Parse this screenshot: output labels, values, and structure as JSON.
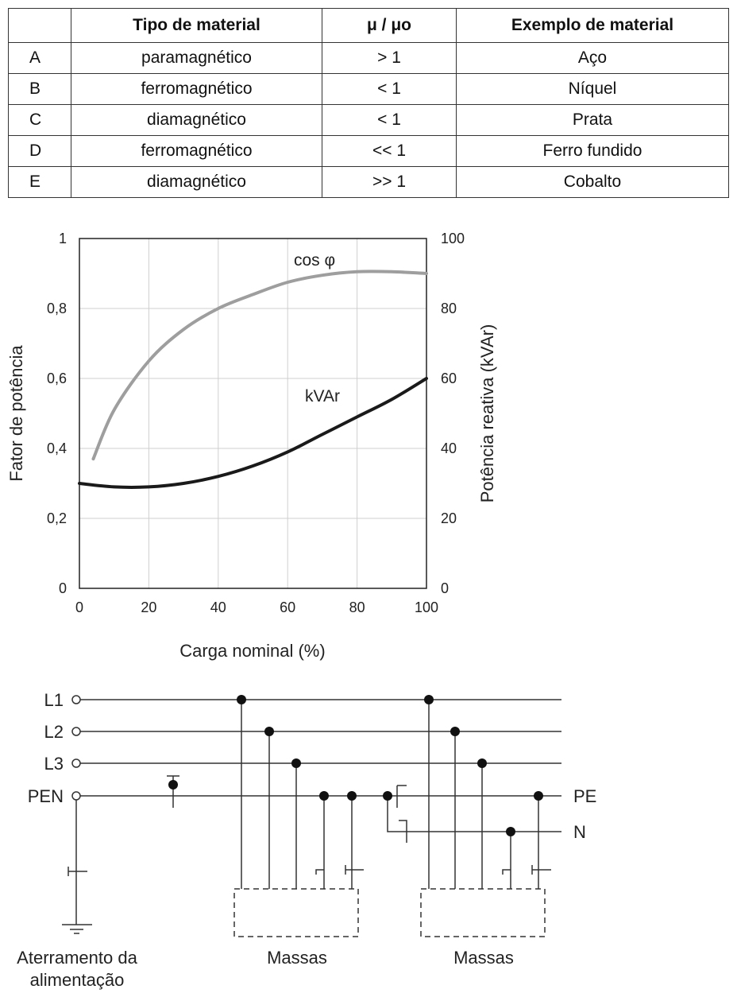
{
  "table": {
    "headers": [
      "",
      "Tipo de material",
      "μ / μo",
      "Exemplo de material"
    ],
    "rows": [
      {
        "letter": "A",
        "tipo": "paramagnético",
        "mu": "> 1",
        "exemplo": "Aço"
      },
      {
        "letter": "B",
        "tipo": "ferromagnético",
        "mu": "< 1",
        "exemplo": "Níquel"
      },
      {
        "letter": "C",
        "tipo": "diamagnético",
        "mu": "< 1",
        "exemplo": "Prata"
      },
      {
        "letter": "D",
        "tipo": "ferromagnético",
        "mu": "<< 1",
        "exemplo": "Ferro fundido"
      },
      {
        "letter": "E",
        "tipo": "diamagnético",
        "mu": ">> 1",
        "exemplo": "Cobalto"
      }
    ]
  },
  "chart_data": {
    "type": "line",
    "title": "",
    "xlabel": "Carga nominal (%)",
    "ylabel": "Fator de potência",
    "y2label": "Potência reativa (kVAr)",
    "xlim": [
      0,
      100
    ],
    "ylim": [
      0,
      1
    ],
    "y2lim": [
      0,
      100
    ],
    "x_ticks": [
      "0",
      "20",
      "40",
      "60",
      "80",
      "100"
    ],
    "y_ticks": [
      "0",
      "0,2",
      "0,4",
      "0,6",
      "0,8",
      "1"
    ],
    "y2_ticks": [
      "0",
      "20",
      "40",
      "60",
      "80",
      "100"
    ],
    "grid": true,
    "series": [
      {
        "name": "cos φ",
        "axis": "left",
        "color": "#9e9e9e",
        "x": [
          4,
          10,
          20,
          30,
          40,
          50,
          60,
          70,
          80,
          90,
          100
        ],
        "y": [
          0.37,
          0.51,
          0.65,
          0.74,
          0.8,
          0.84,
          0.875,
          0.895,
          0.905,
          0.905,
          0.9
        ]
      },
      {
        "name": "kVAr",
        "axis": "right",
        "color": "#1a1a1a",
        "x": [
          0,
          10,
          20,
          30,
          40,
          50,
          60,
          70,
          80,
          90,
          100
        ],
        "y": [
          30,
          29,
          29,
          30,
          32,
          35,
          39,
          44,
          49,
          54,
          60
        ]
      }
    ]
  },
  "diagram": {
    "phase_labels": [
      "L1",
      "L2",
      "L3",
      "PEN"
    ],
    "right_labels": [
      "PE",
      "N"
    ],
    "bottom_labels": {
      "supply_ground": [
        "Aterramento da",
        "alimentação"
      ],
      "masses_1": "Massas",
      "masses_2": "Massas"
    }
  }
}
